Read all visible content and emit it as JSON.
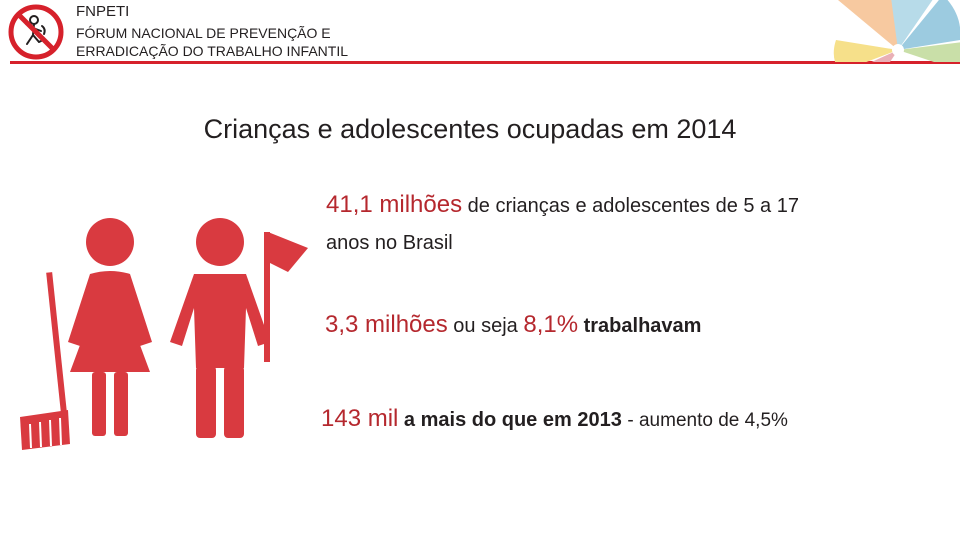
{
  "header": {
    "acronym": "FNPETI",
    "org_line1": "FÓRUM NACIONAL DE PREVENÇÃO E",
    "org_line2": "ERRADICAÇÃO DO TRABALHO INFANTIL"
  },
  "title": "Crianças e adolescentes ocupadas em 2014",
  "stats": {
    "s1": {
      "highlight": "41,1 milhões",
      "text": " de crianças e adolescentes de 5 a 17",
      "text2": "anos no Brasil"
    },
    "s2": {
      "highlight1": "3,3 milhões",
      "text1": " ou seja ",
      "highlight2": "8,1%",
      "text2": " trabalhavam"
    },
    "s3": {
      "highlight": "143 mil",
      "bold": " a mais do que em 2013 ",
      "text": "- aumento de 4,5%"
    }
  },
  "colors": {
    "accent_red": "#d6212b",
    "highlight_red": "#b5282e",
    "figure_red": "#d93a40"
  }
}
